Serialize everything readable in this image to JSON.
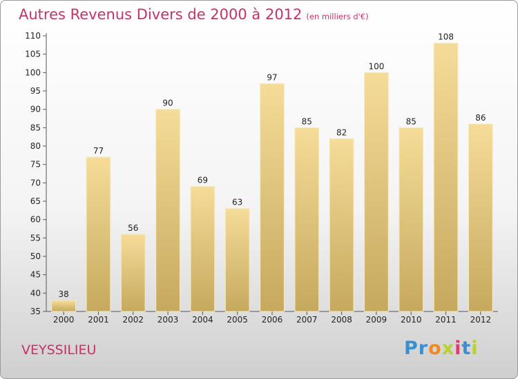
{
  "chart_title": "Autres Revenus Divers de 2000 à 2012",
  "chart_subtitle": "(en milliers d'€)",
  "location": "VEYSSILIEU",
  "logo": {
    "text": "Proxiti",
    "letters": [
      "P",
      "r",
      "o",
      "x",
      "i",
      "t",
      "i"
    ],
    "colors": [
      "#3b8fd0",
      "#3b8fd0",
      "#f08a22",
      "#b8d12b",
      "#e23b6d",
      "#3b8fd0",
      "#b8d12b"
    ]
  },
  "colors": {
    "title": "#c8306a",
    "bar": "#e9cc82",
    "axis": "#555555"
  },
  "chart_data": {
    "type": "bar",
    "title": "Autres Revenus Divers de 2000 à 2012",
    "subtitle": "(en milliers d'€)",
    "categories": [
      "2000",
      "2001",
      "2002",
      "2003",
      "2004",
      "2005",
      "2006",
      "2007",
      "2008",
      "2009",
      "2010",
      "2011",
      "2012"
    ],
    "values": [
      38,
      77,
      56,
      90,
      69,
      63,
      97,
      85,
      82,
      100,
      85,
      108,
      86
    ],
    "ylim": [
      35,
      110
    ],
    "yticks": [
      35,
      40,
      45,
      50,
      55,
      60,
      65,
      70,
      75,
      80,
      85,
      90,
      95,
      100,
      105,
      110
    ],
    "grid": false,
    "legend": "none"
  }
}
